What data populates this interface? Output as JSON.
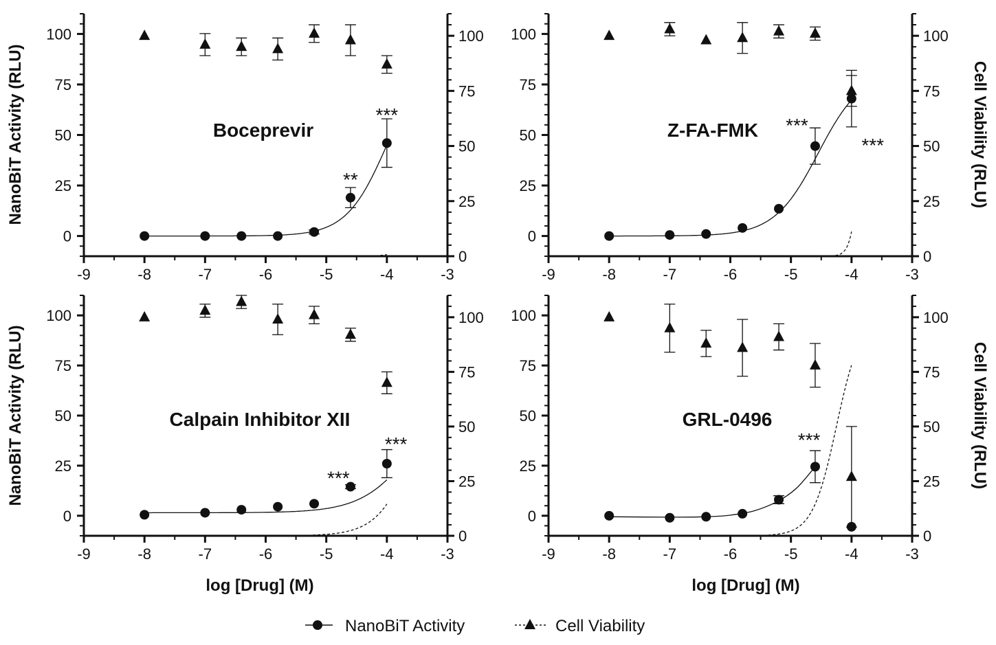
{
  "figure": {
    "legend": {
      "nanobit": "NanoBiT Activity",
      "viability": "Cell Viability"
    }
  },
  "chart_data": [
    {
      "type": "line",
      "title": "Boceprevir",
      "xlabel": "",
      "ylabel_left": "NanoBiT Activity (RLU)",
      "ylabel_right": "",
      "xlim": [
        -9,
        -3
      ],
      "ylim_left": [
        -10,
        110
      ],
      "ylim_right": [
        0,
        110
      ],
      "x_ticks": [
        -9,
        -8,
        -7,
        -6,
        -5,
        -4,
        -3
      ],
      "y_ticks_left": [
        0,
        25,
        50,
        75,
        100
      ],
      "y_ticks_right": [
        0,
        25,
        50,
        75,
        100
      ],
      "series": [
        {
          "name": "NanoBiT Activity",
          "axis": "left",
          "marker": "circle",
          "x": [
            -8,
            -7,
            -6.4,
            -5.8,
            -5.2,
            -4.6,
            -4
          ],
          "y": [
            0,
            0,
            0,
            0,
            2,
            19,
            46
          ],
          "err": [
            0,
            0,
            0,
            0,
            1,
            5,
            12
          ],
          "fit": {
            "bottom": 0,
            "top": 90,
            "logec50": -4.0,
            "hill": 1.3
          }
        },
        {
          "name": "Cell Viability",
          "axis": "right",
          "marker": "triangle",
          "x": [
            -8,
            -7,
            -6.4,
            -5.8,
            -5.2,
            -4.6,
            -4
          ],
          "y": [
            100,
            96,
            95,
            94,
            101,
            98,
            87
          ],
          "err": [
            0,
            5,
            4,
            5,
            4,
            7,
            4
          ],
          "fit": {
            "bottom": 0,
            "top": 97,
            "logec50": -3.3,
            "hill": 3
          }
        }
      ],
      "annotations": [
        {
          "text": "**",
          "x": -4.6,
          "y": 28,
          "axis": "left"
        },
        {
          "text": "***",
          "x": -4.0,
          "y": 60,
          "axis": "left"
        }
      ]
    },
    {
      "type": "line",
      "title": "Z-FA-FMK",
      "xlabel": "",
      "ylabel_left": "",
      "ylabel_right": "Cell Viability (RLU)",
      "xlim": [
        -9,
        -3
      ],
      "ylim_left": [
        -10,
        110
      ],
      "ylim_right": [
        0,
        110
      ],
      "x_ticks": [
        -9,
        -8,
        -7,
        -6,
        -5,
        -4,
        -3
      ],
      "y_ticks_left": [
        0,
        25,
        50,
        75,
        100
      ],
      "y_ticks_right": [
        0,
        25,
        50,
        75,
        100
      ],
      "series": [
        {
          "name": "NanoBiT Activity",
          "axis": "left",
          "marker": "circle",
          "x": [
            -8,
            -7,
            -6.4,
            -5.8,
            -5.2,
            -4.6,
            -4
          ],
          "y": [
            0,
            0.5,
            1,
            4,
            13.5,
            44.5,
            68
          ],
          "err": [
            0,
            0,
            0,
            0,
            0,
            9,
            14
          ],
          "fit": {
            "bottom": 0,
            "top": 82,
            "logec50": -4.55,
            "hill": 1.2
          }
        },
        {
          "name": "Cell Viability",
          "axis": "right",
          "marker": "triangle",
          "x": [
            -8,
            -7,
            -6.4,
            -5.8,
            -5.2,
            -4.6,
            -4
          ],
          "y": [
            100,
            103,
            98,
            99,
            102,
            101,
            75
          ],
          "err": [
            0,
            3,
            0,
            7,
            3,
            3,
            7
          ],
          "fit": {
            "bottom": 0,
            "top": 100,
            "logec50": -3.85,
            "hill": 6
          }
        }
      ],
      "annotations": [
        {
          "text": "***",
          "x": -4.9,
          "y": 55,
          "axis": "left"
        },
        {
          "text": "***",
          "x": -3.65,
          "y": 45,
          "axis": "left"
        }
      ]
    },
    {
      "type": "line",
      "title": "Calpain Inhibitor XII",
      "xlabel": "log [Drug] (M)",
      "ylabel_left": "NanoBiT Activity (RLU)",
      "ylabel_right": "",
      "xlim": [
        -9,
        -3
      ],
      "ylim_left": [
        -10,
        110
      ],
      "ylim_right": [
        0,
        110
      ],
      "x_ticks": [
        -9,
        -8,
        -7,
        -6,
        -5,
        -4,
        -3
      ],
      "y_ticks_left": [
        0,
        25,
        50,
        75,
        100
      ],
      "y_ticks_right": [
        0,
        25,
        50,
        75,
        100
      ],
      "series": [
        {
          "name": "NanoBiT Activity",
          "axis": "left",
          "marker": "circle",
          "x": [
            -8,
            -7,
            -6.4,
            -5.8,
            -5.2,
            -4.6,
            -4
          ],
          "y": [
            0.5,
            1.5,
            3,
            4.5,
            6,
            14.5,
            26
          ],
          "err": [
            0,
            0,
            0,
            0,
            0,
            1,
            7
          ],
          "fit": {
            "bottom": 1.5,
            "top": 70,
            "logec50": -3.5,
            "hill": 1
          }
        },
        {
          "name": "Cell Viability",
          "axis": "right",
          "marker": "triangle",
          "x": [
            -8,
            -7,
            -6.4,
            -5.8,
            -5.2,
            -4.6,
            -4
          ],
          "y": [
            100,
            103,
            107,
            99,
            101,
            92,
            70
          ],
          "err": [
            0,
            3,
            3,
            7,
            4,
            3,
            5
          ],
          "fit": {
            "bottom": 0,
            "top": 100,
            "logec50": -3.45,
            "hill": 1.4
          }
        }
      ],
      "annotations": [
        {
          "text": "***",
          "x": -4.8,
          "y": 19,
          "axis": "left"
        },
        {
          "text": "***",
          "x": -3.85,
          "y": 36,
          "axis": "left"
        }
      ]
    },
    {
      "type": "line",
      "title": "GRL-0496",
      "xlabel": "log [Drug] (M)",
      "ylabel_left": "",
      "ylabel_right": "Cell Viability (RLU)",
      "xlim": [
        -9,
        -3
      ],
      "ylim_left": [
        -10,
        110
      ],
      "ylim_right": [
        0,
        110
      ],
      "x_ticks": [
        -9,
        -8,
        -7,
        -6,
        -5,
        -4,
        -3
      ],
      "y_ticks_left": [
        0,
        25,
        50,
        75,
        100
      ],
      "y_ticks_right": [
        0,
        25,
        50,
        75,
        100
      ],
      "series": [
        {
          "name": "NanoBiT Activity",
          "axis": "left",
          "marker": "circle",
          "x": [
            -8,
            -7,
            -6.4,
            -5.8,
            -5.2,
            -4.6,
            -4
          ],
          "y": [
            0,
            -1,
            -0.5,
            1,
            8,
            24.5,
            -5.5
          ],
          "err": [
            0,
            0,
            0,
            0,
            2,
            8,
            0
          ],
          "fit_points": [
            [
              -8,
              -0.5
            ],
            [
              -7,
              -0.7
            ],
            [
              -6.4,
              -0.5
            ],
            [
              -6,
              0.3
            ],
            [
              -5.6,
              2.5
            ],
            [
              -5.2,
              7.5
            ],
            [
              -4.9,
              14
            ],
            [
              -4.6,
              24.5
            ]
          ]
        },
        {
          "name": "Cell Viability",
          "axis": "right",
          "marker": "triangle",
          "x": [
            -8,
            -7,
            -6.4,
            -5.8,
            -5.2,
            -4.6,
            -4
          ],
          "y": [
            100,
            95,
            88,
            86,
            91,
            78,
            27
          ],
          "err": [
            0,
            11,
            6,
            13,
            6,
            10,
            23
          ],
          "fit": {
            "bottom": 0,
            "top": 100,
            "logec50": -4.25,
            "hill": 2.2
          }
        }
      ],
      "annotations": [
        {
          "text": "***",
          "x": -4.7,
          "y": 38,
          "axis": "left"
        }
      ]
    }
  ]
}
